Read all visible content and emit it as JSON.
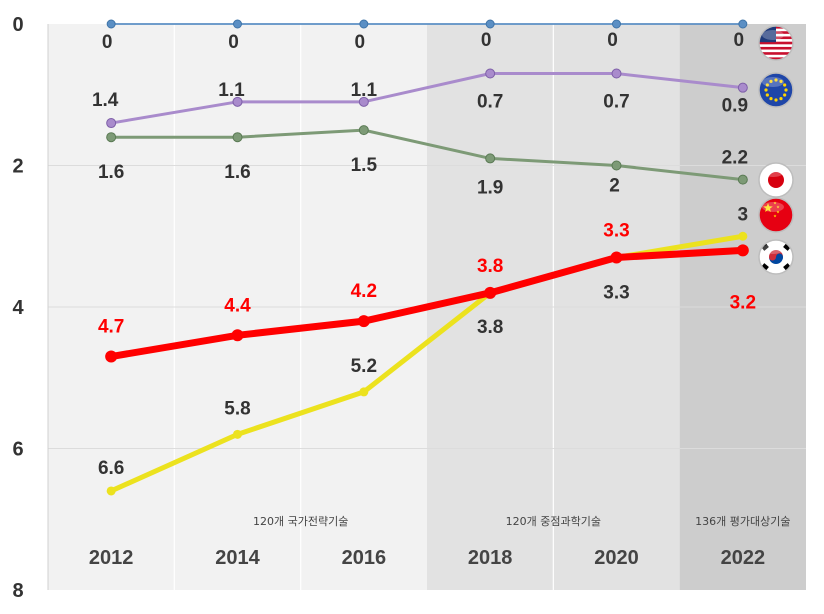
{
  "chart_data": {
    "type": "line",
    "title": "",
    "xlabel": "",
    "ylabel": "",
    "y_inverted": true,
    "ylim": [
      0,
      8
    ],
    "y_ticks": [
      "0",
      "2",
      "4",
      "6",
      "8"
    ],
    "x_ticks": [
      "2012",
      "2014",
      "2016",
      "2018",
      "2020",
      "2022"
    ],
    "x": [
      2012,
      2014,
      2016,
      2018,
      2020,
      2022
    ],
    "grid": true,
    "bands": [
      {
        "label": "120개 국가전략기술",
        "from": 2011,
        "to": 2017,
        "color": "#f2f2f2"
      },
      {
        "label": "120개 중점과학기술",
        "from": 2017,
        "to": 2021,
        "color": "#e2e2e2"
      },
      {
        "label": "136개 평가대상기술",
        "from": 2021,
        "to": 2023,
        "color": "#cdcdcd"
      }
    ],
    "series": [
      {
        "name": "USA",
        "flag": "us-flag-icon",
        "color": "#5b8fc4",
        "label_color": "#333333",
        "values": [
          0,
          0,
          0,
          0,
          0,
          0
        ],
        "labels": [
          "0",
          "0",
          "0",
          "0",
          "0",
          "0"
        ]
      },
      {
        "name": "EU",
        "flag": "eu-flag-icon",
        "color": "#a98bcc",
        "label_color": "#333333",
        "values": [
          1.4,
          1.1,
          1.1,
          0.7,
          0.7,
          0.9
        ],
        "labels": [
          "1.4",
          "1.1",
          "1.1",
          "0.7",
          "0.7",
          "0.9"
        ]
      },
      {
        "name": "Japan",
        "flag": "japan-flag-icon",
        "color": "#7d9a76",
        "label_color": "#333333",
        "values": [
          1.6,
          1.6,
          1.5,
          1.9,
          2,
          2.2
        ],
        "labels": [
          "1.6",
          "1.6",
          "1.5",
          "1.9",
          "2",
          "2.2"
        ]
      },
      {
        "name": "China",
        "flag": "china-flag-icon",
        "color": "#ece21e",
        "label_color": "#333333",
        "values": [
          6.6,
          5.8,
          5.2,
          3.8,
          3.3,
          3
        ],
        "labels": [
          "6.6",
          "5.8",
          "5.2",
          "3.8",
          "3.3",
          "3"
        ]
      },
      {
        "name": "Korea",
        "flag": "korea-flag-icon",
        "color": "#ff0000",
        "label_color": "#ff0000",
        "values": [
          4.7,
          4.4,
          4.2,
          3.8,
          3.3,
          3.2
        ],
        "labels": [
          "4.7",
          "4.4",
          "4.2",
          "3.8",
          "3.3",
          "3.2"
        ]
      }
    ]
  }
}
